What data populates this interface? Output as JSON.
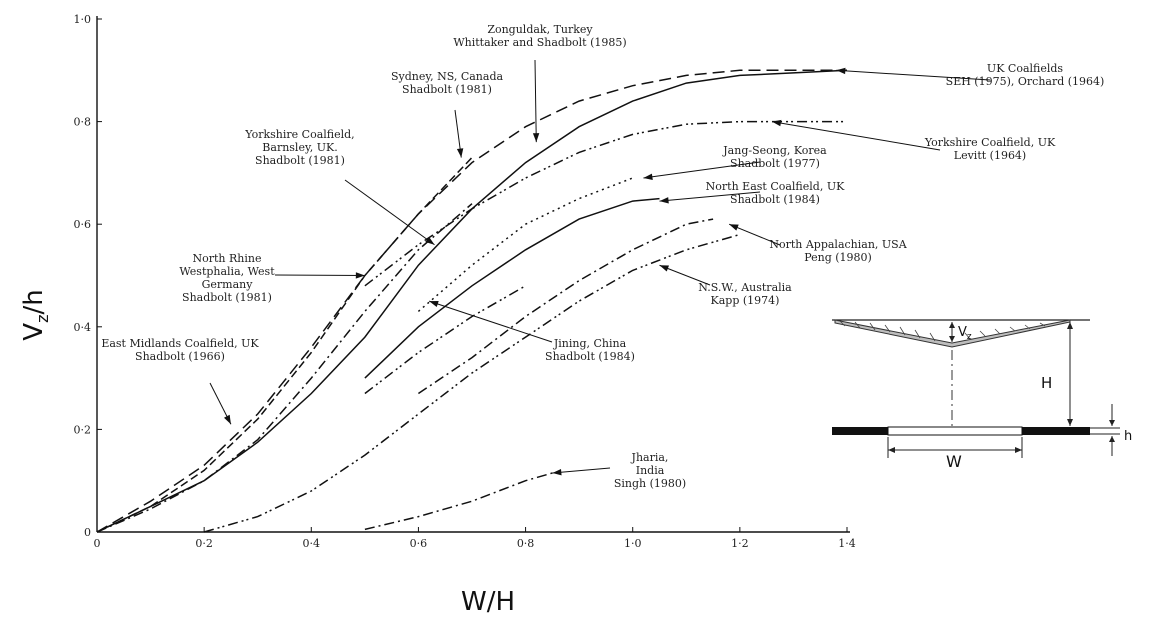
{
  "chart_data": {
    "type": "line",
    "xlabel": "W/H",
    "ylabel_main": "V",
    "ylabel_sub": "z",
    "ylabel_tail": "/h",
    "xlim": [
      0,
      1.4
    ],
    "ylim": [
      0,
      1.0
    ],
    "xticks": [
      0,
      0.2,
      0.4,
      0.6,
      0.8,
      1.0,
      1.2,
      1.4
    ],
    "xtick_labels": [
      "0",
      "0·2",
      "0·4",
      "0·6",
      "0·8",
      "1·0",
      "1·2",
      "1·4"
    ],
    "yticks": [
      0,
      0.2,
      0.4,
      0.6,
      0.8,
      1.0
    ],
    "ytick_labels": [
      "0",
      "0·2",
      "0·4",
      "0·6",
      "0·8",
      "1·0"
    ],
    "grid": false,
    "series": [
      {
        "id": "uk",
        "dash": "solid",
        "x": [
          0,
          0.1,
          0.2,
          0.3,
          0.4,
          0.5,
          0.6,
          0.7,
          0.8,
          0.9,
          1.0,
          1.1,
          1.2,
          1.3,
          1.4
        ],
        "y": [
          0,
          0.05,
          0.1,
          0.175,
          0.27,
          0.38,
          0.52,
          0.63,
          0.72,
          0.79,
          0.84,
          0.875,
          0.89,
          0.895,
          0.9
        ]
      },
      {
        "id": "emidlands",
        "dash": "longdash",
        "x": [
          0,
          0.1,
          0.2,
          0.3,
          0.4,
          0.5,
          0.6,
          0.7,
          0.8,
          0.9,
          1.0,
          1.1,
          1.2,
          1.3,
          1.4
        ],
        "y": [
          0,
          0.06,
          0.13,
          0.23,
          0.36,
          0.5,
          0.62,
          0.72,
          0.79,
          0.84,
          0.87,
          0.89,
          0.9,
          0.9,
          0.9
        ]
      },
      {
        "id": "rhine",
        "dash": "dash",
        "x": [
          0,
          0.1,
          0.2,
          0.3,
          0.4,
          0.5,
          0.6,
          0.7
        ],
        "y": [
          0,
          0.05,
          0.12,
          0.22,
          0.35,
          0.5,
          0.62,
          0.73
        ]
      },
      {
        "id": "yorkshire-barnsley",
        "dash": "dashdot",
        "x": [
          0,
          0.1,
          0.2,
          0.3,
          0.4,
          0.5,
          0.6,
          0.7
        ],
        "y": [
          0,
          0.045,
          0.1,
          0.18,
          0.3,
          0.43,
          0.55,
          0.64
        ]
      },
      {
        "id": "yorkshire-levitt",
        "dash": "dashdotdot",
        "x": [
          0.5,
          0.6,
          0.7,
          0.8,
          0.9,
          1.0,
          1.1,
          1.2,
          1.3,
          1.4
        ],
        "y": [
          0.48,
          0.56,
          0.63,
          0.69,
          0.74,
          0.775,
          0.795,
          0.8,
          0.8,
          0.8
        ]
      },
      {
        "id": "jangseong",
        "dash": "dotted",
        "x": [
          0.6,
          0.7,
          0.8,
          0.9,
          1.0
        ],
        "y": [
          0.43,
          0.52,
          0.6,
          0.65,
          0.69
        ]
      },
      {
        "id": "north-east",
        "dash": "solid",
        "x": [
          0.5,
          0.6,
          0.7,
          0.8,
          0.9,
          1.0,
          1.05
        ],
        "y": [
          0.3,
          0.4,
          0.48,
          0.55,
          0.61,
          0.645,
          0.65
        ]
      },
      {
        "id": "jining",
        "dash": "dashdotdot",
        "x": [
          0.5,
          0.6,
          0.7,
          0.8
        ],
        "y": [
          0.27,
          0.35,
          0.42,
          0.48
        ]
      },
      {
        "id": "appalachian",
        "dash": "dashdot",
        "x": [
          0.6,
          0.7,
          0.8,
          0.9,
          1.0,
          1.1,
          1.15
        ],
        "y": [
          0.27,
          0.34,
          0.42,
          0.49,
          0.55,
          0.6,
          0.61
        ]
      },
      {
        "id": "nsw",
        "dash": "dashdotdot",
        "x": [
          0.2,
          0.3,
          0.4,
          0.5,
          0.6,
          0.7,
          0.8,
          0.9,
          1.0,
          1.1,
          1.2
        ],
        "y": [
          0,
          0.03,
          0.08,
          0.15,
          0.23,
          0.31,
          0.38,
          0.45,
          0.51,
          0.55,
          0.58
        ]
      },
      {
        "id": "jharia",
        "dash": "dashdot",
        "x": [
          0.5,
          0.6,
          0.7,
          0.8,
          0.85
        ],
        "y": [
          0.005,
          0.03,
          0.06,
          0.1,
          0.115
        ]
      }
    ],
    "annotations": [
      {
        "id": "uk",
        "lines": [
          "UK Coalfields",
          "SEH (1975), Orchard (1964)"
        ],
        "target": [
          1.38,
          0.9
        ]
      },
      {
        "id": "zonguldak",
        "lines": [
          "Zonguldak, Turkey",
          "Whittaker and Shadbolt (1985)"
        ],
        "target": [
          0.82,
          0.76
        ]
      },
      {
        "id": "sydney",
        "lines": [
          "Sydney, NS, Canada",
          "Shadbolt (1981)"
        ],
        "target": [
          0.68,
          0.73
        ]
      },
      {
        "id": "yorkshire-barnsley",
        "lines": [
          "Yorkshire Coalfield,",
          "Barnsley, UK.",
          "Shadbolt (1981)"
        ],
        "target": [
          0.63,
          0.56
        ]
      },
      {
        "id": "yorkshire-levitt",
        "lines": [
          "Yorkshire Coalfield, UK",
          "Levitt (1964)"
        ],
        "target": [
          1.26,
          0.8
        ]
      },
      {
        "id": "jangseong",
        "lines": [
          "Jang-Seong, Korea",
          "Shadbolt (1977)"
        ],
        "target": [
          1.02,
          0.69
        ]
      },
      {
        "id": "north-east",
        "lines": [
          "North East Coalfield, UK",
          "Shadbolt (1984)"
        ],
        "target": [
          1.05,
          0.645
        ]
      },
      {
        "id": "rhine",
        "lines": [
          "North Rhine",
          "Westphalia, West",
          "Germany",
          "Shadbolt (1981)"
        ],
        "target": [
          0.5,
          0.5
        ]
      },
      {
        "id": "appalachian",
        "lines": [
          "North Appalachian, USA",
          "Peng (1980)"
        ],
        "target": [
          1.18,
          0.6
        ]
      },
      {
        "id": "nsw",
        "lines": [
          "N.S.W., Australia",
          "Kapp (1974)"
        ],
        "target": [
          1.05,
          0.52
        ]
      },
      {
        "id": "emidlands",
        "lines": [
          "East Midlands Coalfield, UK",
          "Shadbolt (1966)"
        ],
        "target": [
          0.25,
          0.21
        ]
      },
      {
        "id": "jining",
        "lines": [
          "Jining, China",
          "Shadbolt (1984)"
        ],
        "target": [
          0.62,
          0.45
        ]
      },
      {
        "id": "jharia",
        "lines": [
          "Jharia,",
          "India",
          "Singh (1980)"
        ],
        "target": [
          0.85,
          0.115
        ]
      }
    ],
    "diagram": {
      "vz_main": "V",
      "vz_sub": "z",
      "h_big": "H",
      "w": "W",
      "h_small": "h"
    }
  }
}
